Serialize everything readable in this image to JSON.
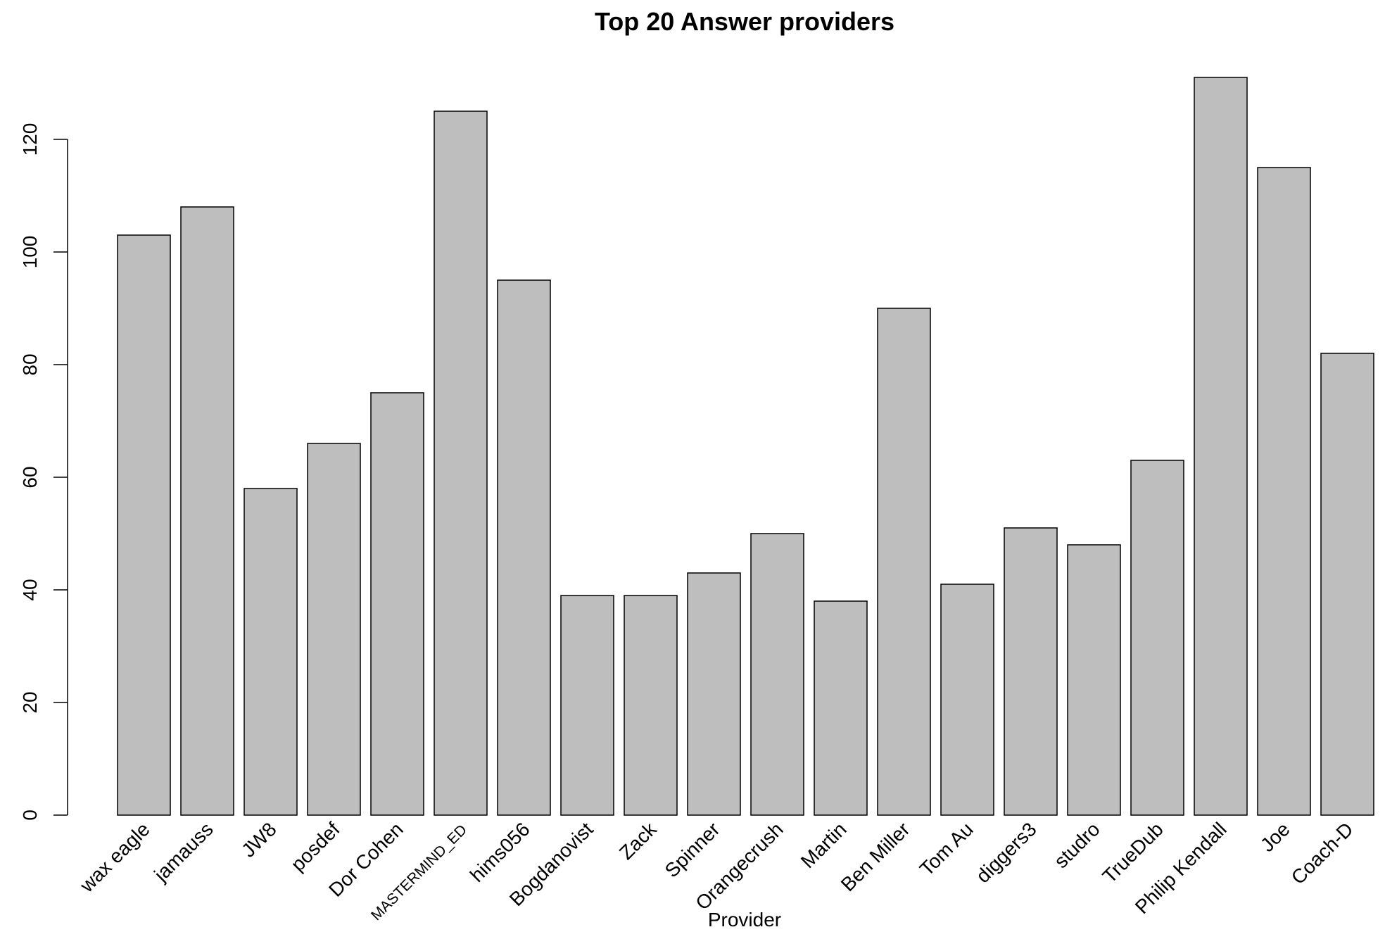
{
  "chart_data": {
    "type": "bar",
    "title": "Top 20 Answer providers",
    "xlabel": "Provider",
    "ylabel": "",
    "ylim": [
      0,
      131
    ],
    "yticks": [
      0,
      20,
      40,
      60,
      80,
      100,
      120
    ],
    "yticks_labels": [
      "0",
      "20",
      "40",
      "60",
      "80",
      "100",
      "120"
    ],
    "grid": false,
    "bar_color": "#bebebe",
    "categories": [
      "wax eagle",
      "jamauss",
      "JW8",
      "posdef",
      "Dor Cohen",
      "MASTERMIND_ED",
      "hims056",
      "Bogdanovist",
      "Zack",
      "Spinner",
      "Orangecrush",
      "Martin",
      "Ben Miller",
      "Tom Au",
      "diggers3",
      "studro",
      "TrueDub",
      "Philip Kendall",
      "Joe",
      "Coach-D"
    ],
    "values": [
      103,
      108,
      58,
      66,
      75,
      125,
      95,
      39,
      39,
      43,
      50,
      38,
      90,
      41,
      51,
      48,
      63,
      131,
      115,
      82
    ]
  }
}
